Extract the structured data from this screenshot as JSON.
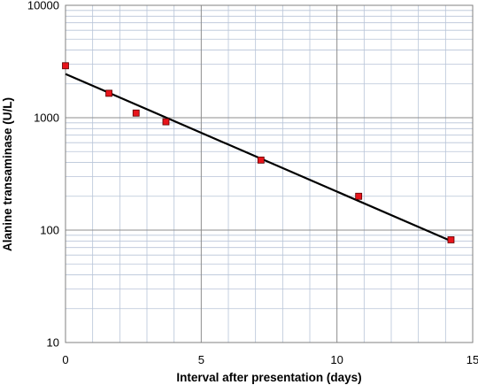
{
  "chart_data": {
    "type": "scatter",
    "title": "",
    "xlabel": "Interval after presentation (days)",
    "ylabel": "Alanine transaminase (U/L)",
    "x_scale": "linear",
    "y_scale": "log",
    "xlim": [
      0,
      15
    ],
    "ylim": [
      10,
      10000
    ],
    "x_ticks": [
      "0",
      "5",
      "10",
      "15"
    ],
    "y_ticks": [
      "10",
      "100",
      "1000",
      "10000"
    ],
    "grid": true,
    "legend": "none",
    "series": [
      {
        "x": [
          0,
          1.6,
          2.6,
          3.7,
          7.2,
          10.8,
          14.2
        ],
        "y": [
          2900,
          1650,
          1100,
          920,
          420,
          200,
          82
        ],
        "marker_color": "#e8141b"
      }
    ],
    "trendline": {
      "type": "exponential",
      "x": [
        0,
        14.2
      ],
      "y": [
        2450,
        80
      ],
      "color": "#000000"
    }
  }
}
